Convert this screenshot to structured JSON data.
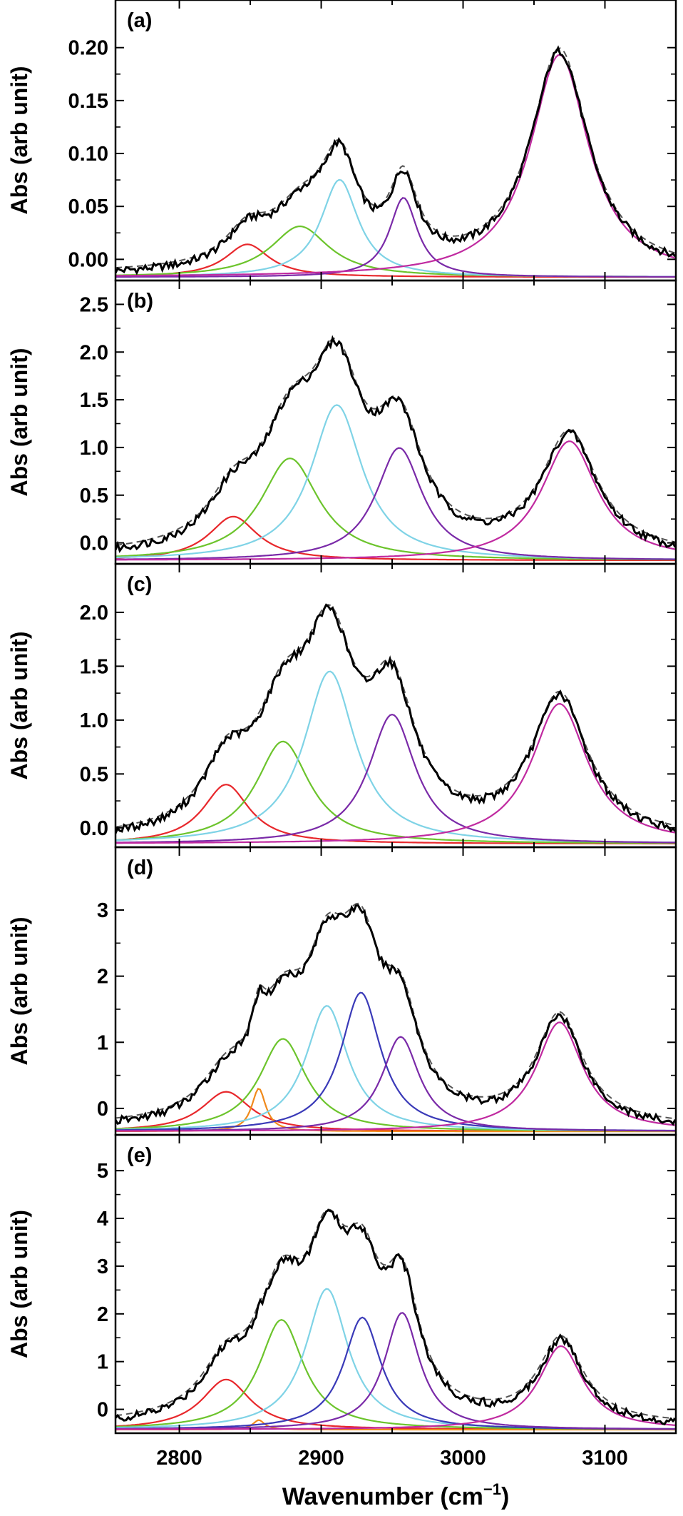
{
  "x_axis": {
    "label": "Wavenumber (cm",
    "label_sup": "−1",
    "label_close": ")",
    "range": [
      2755,
      3150
    ],
    "ticks": [
      2800,
      2900,
      3000,
      3100
    ],
    "tick_labels": [
      "2800",
      "2900",
      "3000",
      "3100"
    ]
  },
  "colors": {
    "data": "#000000",
    "fit": "#555555",
    "red": "#e8282c",
    "orange": "#f08a1c",
    "green": "#6cc42c",
    "cyan": "#7fd3e6",
    "blue": "#3a3ab8",
    "purple": "#7a2aa8",
    "magenta": "#c02aa0"
  },
  "chart_data": [
    {
      "type": "line",
      "panel_label": "(a)",
      "ylabel": "Abs (arb unit)",
      "ylim": [
        -0.02,
        0.245
      ],
      "yticks": [
        0,
        0.05,
        0.1,
        0.15,
        0.2
      ],
      "ytick_labels": [
        "0.00",
        "0.05",
        "0.10",
        "0.15",
        "0.20"
      ],
      "series": [
        {
          "color": "red",
          "peak_center": 2848,
          "peak_height": 0.031,
          "width": 38
        },
        {
          "color": "green",
          "peak_center": 2885,
          "peak_height": 0.048,
          "width": 50
        },
        {
          "color": "cyan",
          "peak_center": 2913,
          "peak_height": 0.092,
          "width": 32
        },
        {
          "color": "purple",
          "peak_center": 2958,
          "peak_height": 0.075,
          "width": 24
        },
        {
          "color": "magenta",
          "peak_center": 3068,
          "peak_height": 0.21,
          "width": 50
        }
      ]
    },
    {
      "type": "line",
      "panel_label": "(b)",
      "ylabel": "Abs (arb unit)",
      "ylim": [
        -0.22,
        2.75
      ],
      "yticks": [
        0,
        0.5,
        1,
        1.5,
        2,
        2.5
      ],
      "ytick_labels": [
        "0.0",
        "0.5",
        "1.0",
        "1.5",
        "2.0",
        "2.5"
      ],
      "series": [
        {
          "color": "red",
          "peak_center": 2838,
          "peak_height": 0.46,
          "width": 42
        },
        {
          "color": "green",
          "peak_center": 2878,
          "peak_height": 1.07,
          "width": 50
        },
        {
          "color": "cyan",
          "peak_center": 2911,
          "peak_height": 1.63,
          "width": 44
        },
        {
          "color": "purple",
          "peak_center": 2955,
          "peak_height": 1.18,
          "width": 40
        },
        {
          "color": "magenta",
          "peak_center": 3075,
          "peak_height": 1.25,
          "width": 48
        }
      ]
    },
    {
      "type": "line",
      "panel_label": "(c)",
      "ylabel": "Abs (arb unit)",
      "ylim": [
        -0.18,
        2.45
      ],
      "yticks": [
        0,
        0.5,
        1,
        1.5,
        2
      ],
      "ytick_labels": [
        "0.0",
        "0.5",
        "1.0",
        "1.5",
        "2.0"
      ],
      "series": [
        {
          "color": "red",
          "peak_center": 2833,
          "peak_height": 0.55,
          "width": 40
        },
        {
          "color": "green",
          "peak_center": 2873,
          "peak_height": 0.95,
          "width": 46
        },
        {
          "color": "cyan",
          "peak_center": 2906,
          "peak_height": 1.6,
          "width": 44
        },
        {
          "color": "purple",
          "peak_center": 2950,
          "peak_height": 1.2,
          "width": 40
        },
        {
          "color": "magenta",
          "peak_center": 3068,
          "peak_height": 1.3,
          "width": 48
        }
      ]
    },
    {
      "type": "line",
      "panel_label": "(d)",
      "ylabel": "Abs (arb unit)",
      "ylim": [
        -0.4,
        3.95
      ],
      "yticks": [
        0,
        1,
        2,
        3
      ],
      "ytick_labels": [
        "0",
        "1",
        "2",
        "3"
      ],
      "series": [
        {
          "color": "red",
          "peak_center": 2833,
          "peak_height": 0.6,
          "width": 42
        },
        {
          "color": "orange",
          "peak_center": 2856,
          "peak_height": 0.65,
          "width": 12
        },
        {
          "color": "green",
          "peak_center": 2873,
          "peak_height": 1.4,
          "width": 40
        },
        {
          "color": "cyan",
          "peak_center": 2904,
          "peak_height": 1.9,
          "width": 36
        },
        {
          "color": "blue",
          "peak_center": 2928,
          "peak_height": 2.1,
          "width": 34
        },
        {
          "color": "purple",
          "peak_center": 2956,
          "peak_height": 1.43,
          "width": 32
        },
        {
          "color": "magenta",
          "peak_center": 3068,
          "peak_height": 1.65,
          "width": 40
        }
      ]
    },
    {
      "type": "line",
      "panel_label": "(e)",
      "ylabel": "Abs (arb unit)",
      "ylim": [
        -0.5,
        5.75
      ],
      "yticks": [
        0,
        1,
        2,
        3,
        4,
        5
      ],
      "ytick_labels": [
        "0",
        "1",
        "2",
        "3",
        "4",
        "5"
      ],
      "series": [
        {
          "color": "red",
          "peak_center": 2833,
          "peak_height": 1.05,
          "width": 42
        },
        {
          "color": "orange",
          "peak_center": 2856,
          "peak_height": 0.2,
          "width": 10
        },
        {
          "color": "green",
          "peak_center": 2872,
          "peak_height": 2.3,
          "width": 38
        },
        {
          "color": "cyan",
          "peak_center": 2904,
          "peak_height": 2.95,
          "width": 36
        },
        {
          "color": "blue",
          "peak_center": 2929,
          "peak_height": 2.35,
          "width": 32
        },
        {
          "color": "purple",
          "peak_center": 2957,
          "peak_height": 2.45,
          "width": 30
        },
        {
          "color": "magenta",
          "peak_center": 3069,
          "peak_height": 1.75,
          "width": 38
        }
      ]
    }
  ]
}
